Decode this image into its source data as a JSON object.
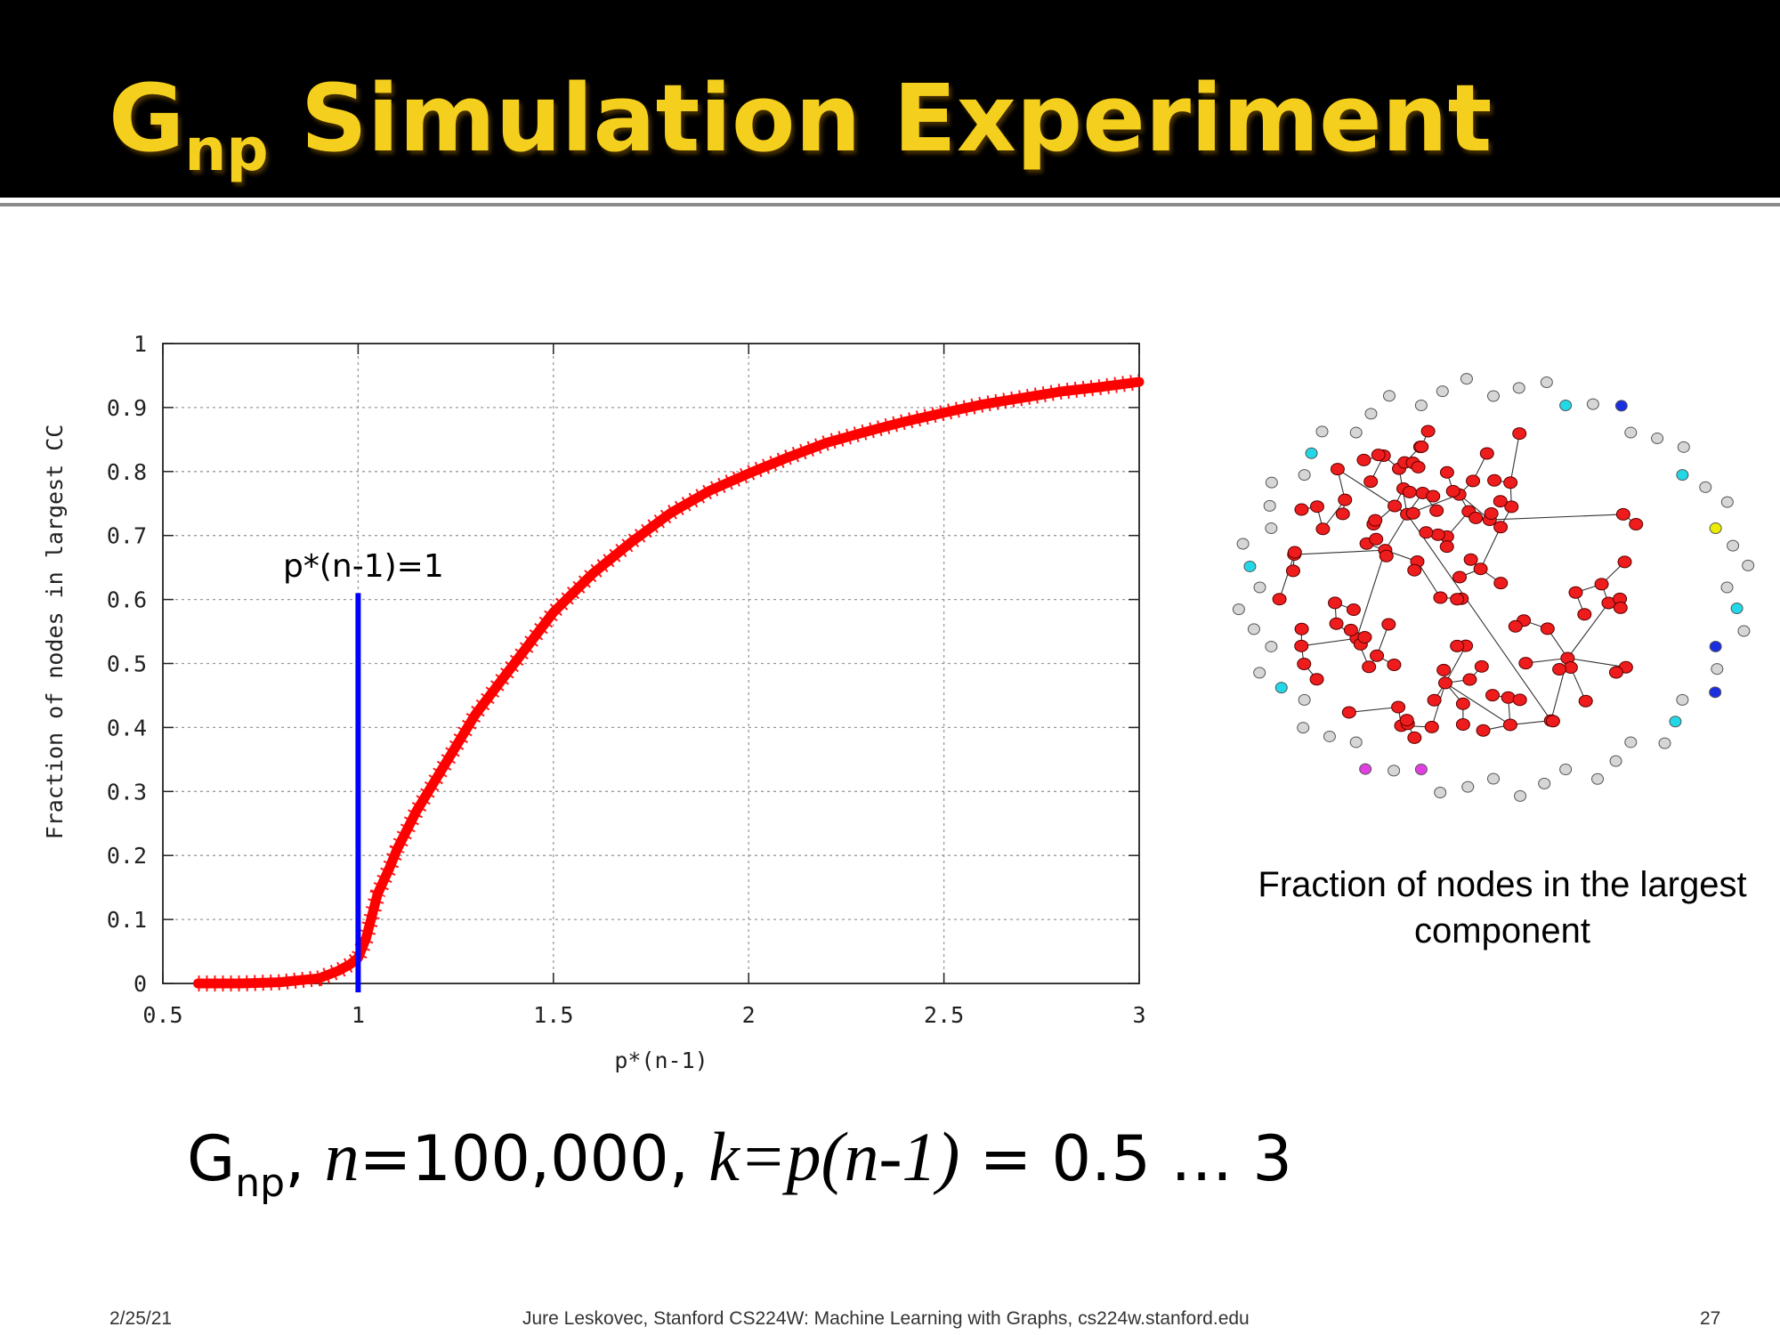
{
  "slide": {
    "title_main": "G",
    "title_sub": "np",
    "title_rest": " Simulation Experiment",
    "formula": {
      "g": "G",
      "g_sub": "np",
      "comma1": ", ",
      "n_var": "n",
      "n_value": "=100,000, ",
      "k_expr": "k=p(n-1)",
      "range": " = 0.5 … 3"
    },
    "caption": "Fraction of nodes in the largest component",
    "footer": {
      "date": "2/25/21",
      "center": "Jure Leskovec, Stanford CS224W: Machine Learning with Graphs, cs224w.stanford.edu",
      "page": "27"
    }
  },
  "colors": {
    "title": "#f4cf1d",
    "curve": "#ff0000",
    "marker_line": "#0000ff",
    "node_main": "#ee1c1c",
    "node_gray": "#d6d6d6",
    "node_cyan": "#22d8e8",
    "node_yellow": "#ecec00",
    "node_blue": "#1a2ee0",
    "node_magenta": "#e040e0"
  },
  "chart_data": {
    "type": "line",
    "title": "",
    "xlabel": "p*(n-1)",
    "ylabel": "Fraction of nodes in largest CC",
    "xlim": [
      0.5,
      3
    ],
    "ylim": [
      0,
      1
    ],
    "x_ticks": [
      "0.5",
      "1",
      "1.5",
      "2",
      "2.5",
      "3"
    ],
    "y_ticks": [
      "0",
      "0.1",
      "0.2",
      "0.3",
      "0.4",
      "0.5",
      "0.6",
      "0.7",
      "0.8",
      "0.9",
      "1"
    ],
    "grid": true,
    "annotation": {
      "text": "p*(n-1)=1",
      "x": 1,
      "y_top": 0.61
    },
    "series": [
      {
        "x": [
          0.59,
          0.7,
          0.8,
          0.9,
          0.95,
          0.98,
          1.0,
          1.02,
          1.05,
          1.08,
          1.1,
          1.15,
          1.2,
          1.25,
          1.3,
          1.4,
          1.5,
          1.6,
          1.7,
          1.8,
          1.9,
          2.0,
          2.1,
          2.2,
          2.3,
          2.4,
          2.5,
          2.6,
          2.7,
          2.8,
          2.9,
          3.0
        ],
        "y": [
          0.0,
          0.0,
          0.002,
          0.008,
          0.02,
          0.03,
          0.04,
          0.07,
          0.14,
          0.18,
          0.21,
          0.27,
          0.32,
          0.37,
          0.42,
          0.5,
          0.58,
          0.64,
          0.69,
          0.735,
          0.77,
          0.797,
          0.822,
          0.845,
          0.862,
          0.878,
          0.892,
          0.905,
          0.915,
          0.925,
          0.932,
          0.94
        ]
      }
    ]
  }
}
